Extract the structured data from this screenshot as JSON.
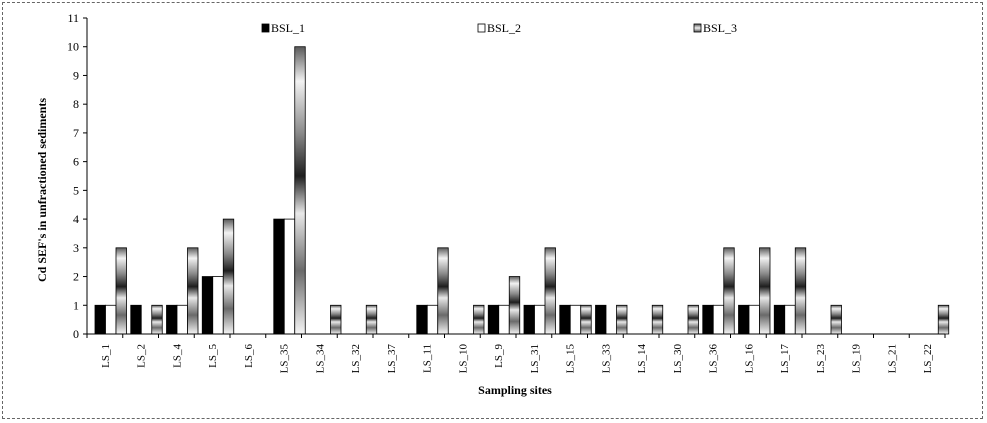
{
  "chart_data": {
    "type": "bar",
    "xlabel": "Sampling sites",
    "ylabel": "Cd SEF's in unfractioned sediments",
    "ylim": [
      0,
      11
    ],
    "yticks": [
      0,
      1,
      2,
      3,
      4,
      5,
      6,
      7,
      8,
      9,
      10,
      11
    ],
    "legend_position": "top",
    "categories": [
      "LS_1",
      "LS_2",
      "LS_4",
      "LS_5",
      "LS_6",
      "LS_35",
      "LS_34",
      "LS_32",
      "LS_37",
      "LS_11",
      "LS_10",
      "LS_9",
      "LS_31",
      "LS_15",
      "LS_33",
      "LS_14",
      "LS_30",
      "LS_36",
      "LS_16",
      "LS_17",
      "LS_23",
      "LS_19",
      "LS_21",
      "LS_22"
    ],
    "series": [
      {
        "name": "BSL_1",
        "color": "#000000",
        "style": "solid",
        "values": [
          1,
          1,
          1,
          2,
          0,
          4,
          0,
          0,
          0,
          1,
          0,
          1,
          1,
          1,
          1,
          0,
          0,
          1,
          1,
          1,
          0,
          0,
          0,
          0
        ]
      },
      {
        "name": "BSL_2",
        "color": "#ffffff",
        "style": "hollow",
        "values": [
          1,
          0,
          1,
          2,
          0,
          4,
          0,
          0,
          0,
          1,
          0,
          1,
          1,
          1,
          0,
          0,
          0,
          1,
          1,
          1,
          0,
          0,
          0,
          0
        ]
      },
      {
        "name": "BSL_3",
        "color": "#9a9a9a",
        "style": "cylinder",
        "values": [
          3,
          1,
          3,
          4,
          0,
          10,
          1,
          1,
          0,
          3,
          1,
          2,
          3,
          1,
          1,
          1,
          1,
          3,
          3,
          3,
          1,
          0,
          0,
          1
        ]
      }
    ]
  }
}
